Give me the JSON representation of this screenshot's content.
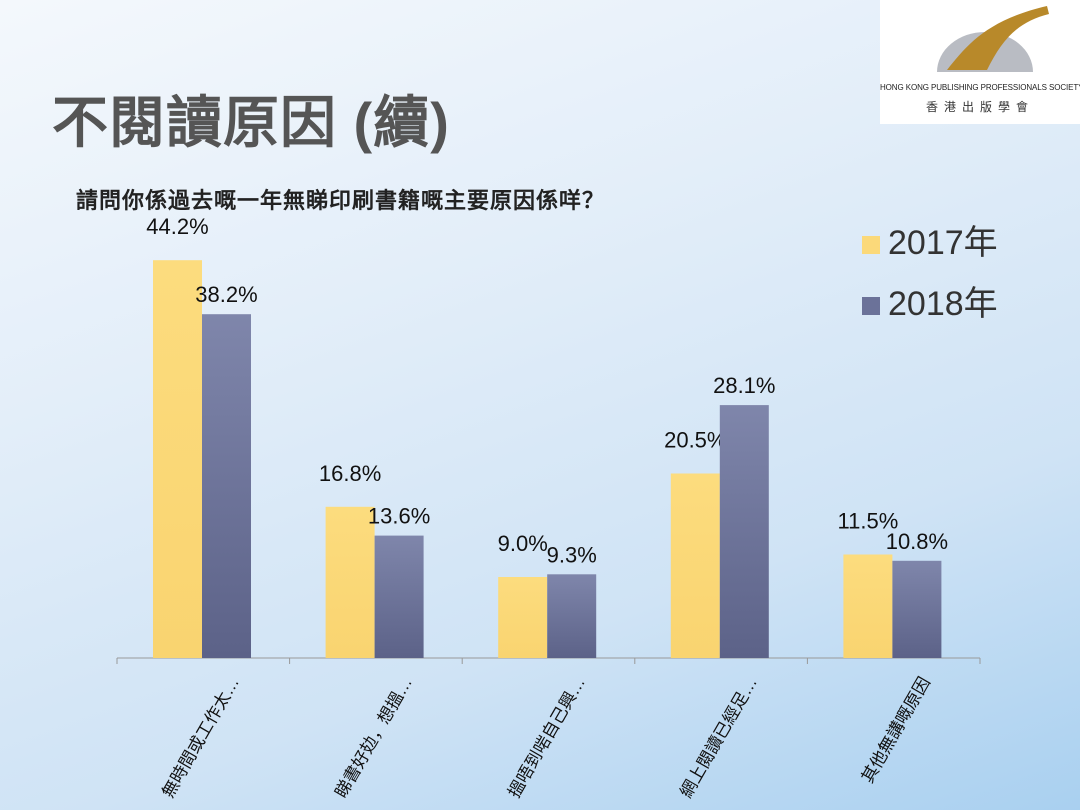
{
  "title": "不閱讀原因 (續)",
  "logo": {
    "en": "HONG KONG PUBLISHING PROFESSIONALS SOCIETY",
    "zh": "香港出版學會"
  },
  "chart_data": {
    "type": "bar",
    "title": "請問你係過去嘅一年無睇印刷書籍嘅主要原因係咩？",
    "categories": [
      "無時間或工作太…",
      "睇書好攰，想搵…",
      "搵唔到啱自己興…",
      "網上閱讀已經足…",
      "其他無講嘅原因"
    ],
    "series": [
      {
        "name": "2017年",
        "values": [
          44.2,
          16.8,
          9.0,
          20.5,
          11.5
        ],
        "labels": [
          "44.2%",
          "16.8%",
          "9.0%",
          "20.5%",
          "11.5%"
        ],
        "color": "#fbd97a"
      },
      {
        "name": "2018年",
        "values": [
          38.2,
          13.6,
          9.3,
          28.1,
          10.8
        ],
        "labels": [
          "38.2%",
          "13.6%",
          "9.3%",
          "28.1%",
          "10.8%"
        ],
        "color": "#6b7299"
      }
    ],
    "ylim": [
      0,
      50
    ],
    "legend": "top-right",
    "grid": false
  }
}
